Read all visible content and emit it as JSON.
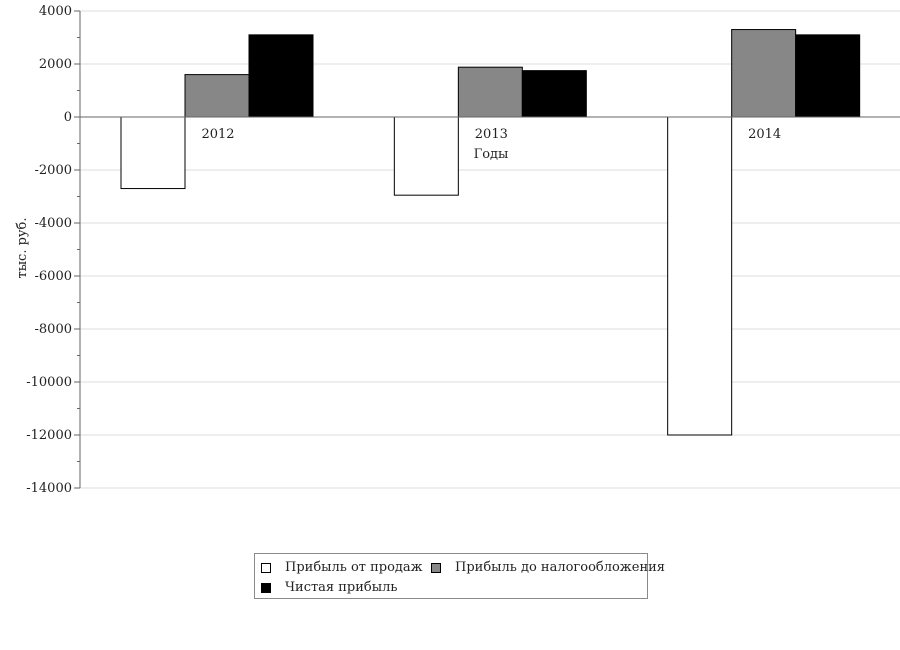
{
  "chart_data": {
    "type": "bar",
    "categories": [
      "2012",
      "2013",
      "2014"
    ],
    "series": [
      {
        "name": "Прибыль от продаж",
        "values": [
          -2700,
          -2950,
          -12000
        ],
        "color": "#ffffff"
      },
      {
        "name": "Прибыль до налогообложения",
        "values": [
          1600,
          1880,
          3300
        ],
        "color": "#878787"
      },
      {
        "name": "Чистая прибыль",
        "values": [
          3100,
          1750,
          3100
        ],
        "color": "#000000"
      }
    ],
    "title": "",
    "xlabel": "Годы",
    "ylabel": "тыс. руб.",
    "ylim": [
      -14000,
      4000
    ],
    "yticks": [
      "4000",
      "2000",
      "0",
      "-2000",
      "-4000",
      "-6000",
      "-8000",
      "-10000",
      "-12000",
      "-14000"
    ],
    "grid": true,
    "legend_position": "bottom"
  }
}
